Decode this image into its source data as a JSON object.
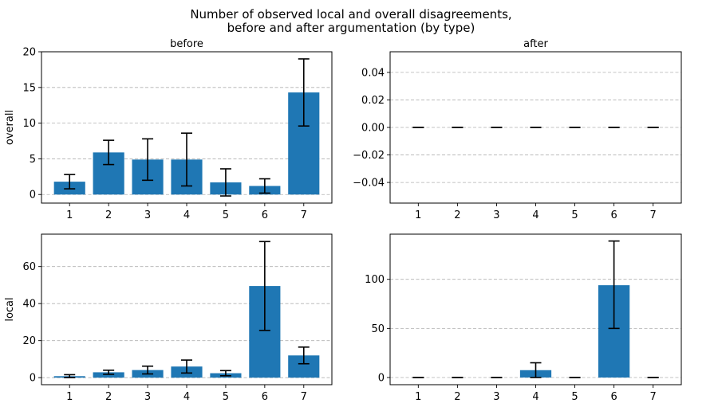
{
  "figure": {
    "title_line1": "Number of observed local and overall disagreements,",
    "title_line2": "before and after argumentation (by type)"
  },
  "colors": {
    "bar": "#1f77b4",
    "grid": "#b0b0b0",
    "error": "#000000"
  },
  "chart_data": [
    {
      "type": "bar",
      "title": "before",
      "ylabel": "overall",
      "categories": [
        "1",
        "2",
        "3",
        "4",
        "5",
        "6",
        "7"
      ],
      "values": [
        1.8,
        5.9,
        4.9,
        4.9,
        1.7,
        1.2,
        14.3
      ],
      "error_low": [
        0.8,
        4.2,
        2.0,
        1.2,
        -0.2,
        0.2,
        9.6
      ],
      "error_high": [
        2.8,
        7.6,
        7.8,
        8.6,
        3.6,
        2.2,
        19.0
      ],
      "ylim": [
        -1.2,
        20
      ],
      "yticks": [
        0,
        5,
        10,
        15,
        20
      ],
      "ytick_labels": [
        "0",
        "5",
        "10",
        "15",
        "20"
      ],
      "grid": true
    },
    {
      "type": "bar",
      "title": "after",
      "ylabel": "",
      "categories": [
        "1",
        "2",
        "3",
        "4",
        "5",
        "6",
        "7"
      ],
      "values": [
        0,
        0,
        0,
        0,
        0,
        0,
        0
      ],
      "error_low": [
        0,
        0,
        0,
        0,
        0,
        0,
        0
      ],
      "error_high": [
        0,
        0,
        0,
        0,
        0,
        0,
        0
      ],
      "ylim": [
        -0.055,
        0.055
      ],
      "yticks": [
        -0.04,
        -0.02,
        0.0,
        0.02,
        0.04
      ],
      "ytick_labels": [
        "−0.04",
        "−0.02",
        "0.00",
        "0.02",
        "0.04"
      ],
      "grid": true
    },
    {
      "type": "bar",
      "title": "",
      "ylabel": "local",
      "categories": [
        "1",
        "2",
        "3",
        "4",
        "5",
        "6",
        "7"
      ],
      "values": [
        0.8,
        2.9,
        4.1,
        6.0,
        2.4,
        49.5,
        12.0
      ],
      "error_low": [
        0.0,
        1.8,
        2.0,
        2.5,
        1.0,
        25.5,
        7.5
      ],
      "error_high": [
        1.6,
        4.0,
        6.2,
        9.5,
        3.8,
        73.5,
        16.5
      ],
      "ylim": [
        -3.8,
        77.5
      ],
      "yticks": [
        0,
        20,
        40,
        60
      ],
      "ytick_labels": [
        "0",
        "20",
        "40",
        "60"
      ],
      "grid": true
    },
    {
      "type": "bar",
      "title": "",
      "ylabel": "",
      "categories": [
        "1",
        "2",
        "3",
        "4",
        "5",
        "6",
        "7"
      ],
      "values": [
        0,
        0,
        0,
        7.5,
        0,
        94.0,
        0
      ],
      "error_low": [
        0,
        0,
        0,
        0,
        0,
        50.0,
        0
      ],
      "error_high": [
        0,
        0,
        0,
        15.0,
        0,
        139.0,
        0
      ],
      "ylim": [
        -7.3,
        146.0
      ],
      "yticks": [
        0,
        50,
        100
      ],
      "ytick_labels": [
        "0",
        "50",
        "100"
      ],
      "grid": true
    }
  ]
}
